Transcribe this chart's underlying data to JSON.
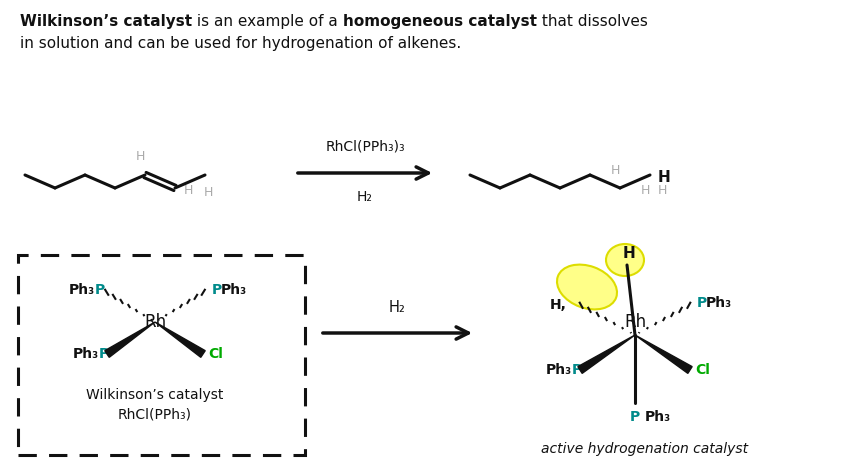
{
  "bg_color": "#ffffff",
  "teal": "#008B8B",
  "green": "#00AA00",
  "gray": "#aaaaaa",
  "yellow": "#FFFF88",
  "black": "#111111",
  "title1_bold": "Wilkinson’s catalyst",
  "title1_normal": " is an example of a ",
  "title2_bold": "homogeneous catalyst",
  "title2_normal": " that dissolves",
  "title_line2": "in solution and can be used for hydrogenation of alkenes.",
  "arrow_label_top": "RhCl(PPh₃)₃",
  "arrow_label_bot": "H₂",
  "wk_label1": "Wilkinson’s catalyst",
  "wk_label2": "RhCl(PPh₃)",
  "caption": "active hydrogenation catalyst"
}
